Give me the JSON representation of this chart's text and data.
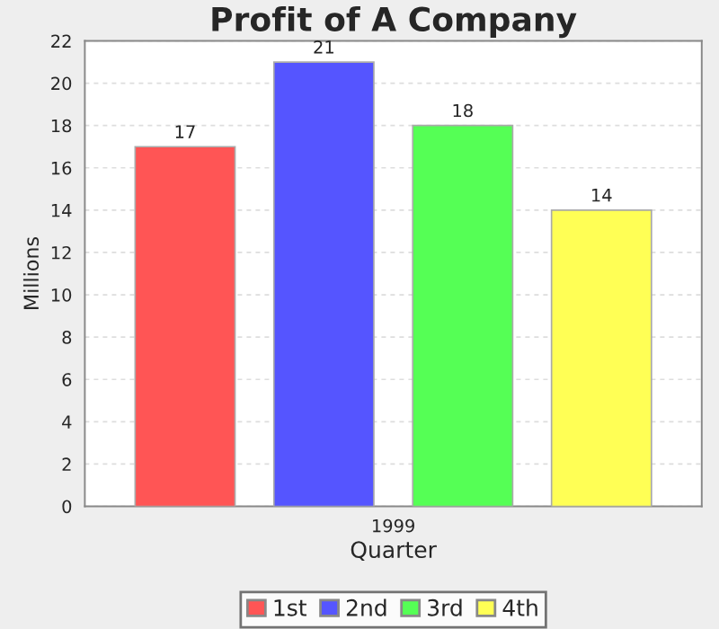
{
  "chart_data": {
    "type": "bar",
    "title": "Profit of A Company",
    "xlabel": "Quarter",
    "ylabel": "Millions",
    "categories": [
      "1999"
    ],
    "series": [
      {
        "name": "1st",
        "color": "#ff5555",
        "values": [
          17
        ]
      },
      {
        "name": "2nd",
        "color": "#5555ff",
        "values": [
          21
        ]
      },
      {
        "name": "3rd",
        "color": "#55ff55",
        "values": [
          18
        ]
      },
      {
        "name": "4th",
        "color": "#ffff55",
        "values": [
          14
        ]
      }
    ],
    "ylim": [
      0,
      22
    ],
    "yticks": [
      0,
      2,
      4,
      6,
      8,
      10,
      12,
      14,
      16,
      18,
      20,
      22
    ],
    "grid": "y",
    "data_labels": true,
    "legend": "bottom"
  }
}
